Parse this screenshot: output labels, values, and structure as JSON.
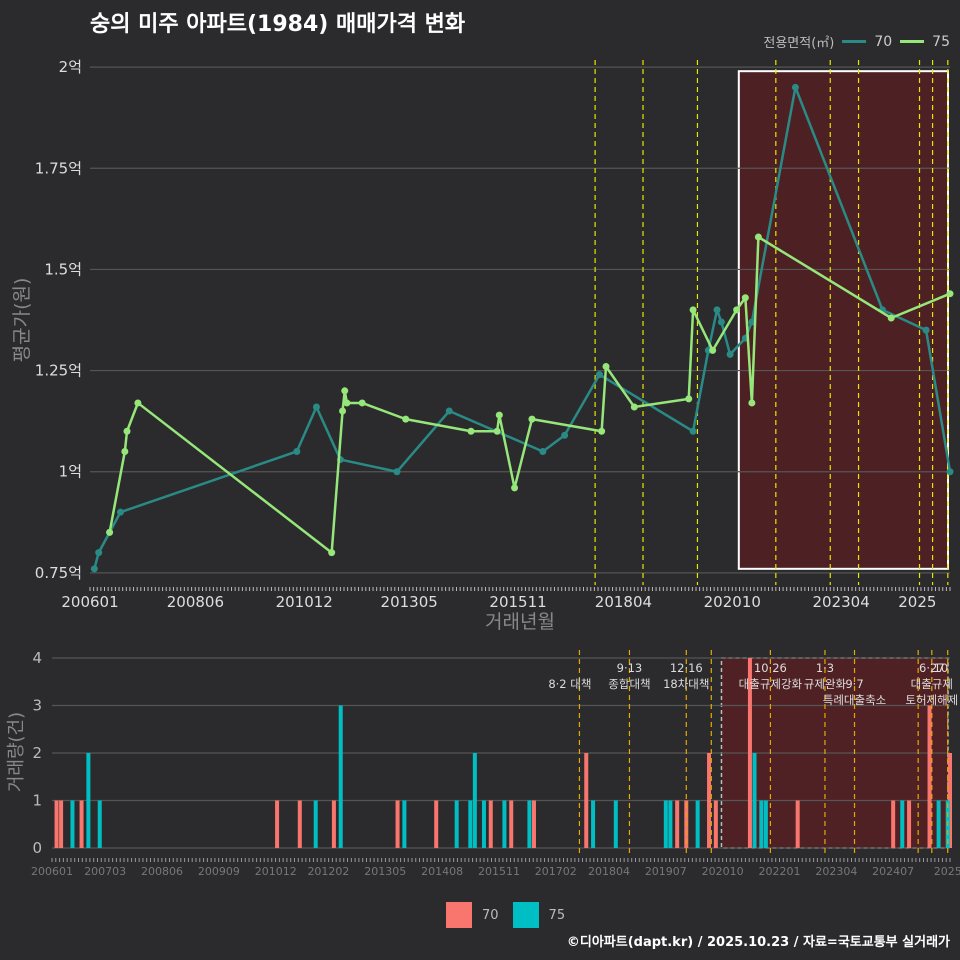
{
  "title": "숭의 미주 아파트(1984) 매매가격 변화",
  "footer": "©디아파트(dapt.kr) / 2025.10.23 / 자료=국토교통부 실거래가",
  "colors": {
    "bg": "#2b2b2d",
    "line70": "#2a8a85",
    "line75": "#96e67a",
    "bar70": "#f8766d",
    "bar75": "#00bfc4",
    "policy": "#e6e600",
    "policy_bottom": "#e6a800",
    "highlight_fill": "#5a1f22",
    "grid": "#555555"
  },
  "legend_top": {
    "title": "전용면적(㎡)",
    "items": [
      "70",
      "75"
    ]
  },
  "legend_bottom": {
    "items": [
      "70",
      "75"
    ]
  },
  "chart_data": [
    {
      "type": "line",
      "title": "숭의 미주 아파트(1984) 매매가격 변화",
      "xlabel": "거래년월",
      "ylabel": "평균가(원)",
      "x_ticks": [
        "200601",
        "200806",
        "201012",
        "201305",
        "201511",
        "201804",
        "202010",
        "202304",
        "2025"
      ],
      "x_tick_values": [
        2006.0,
        2008.42,
        2010.92,
        2013.33,
        2015.83,
        2018.25,
        2020.75,
        2023.25,
        2025.0
      ],
      "xlim": [
        2006.0,
        2025.75
      ],
      "ylim": [
        0.72,
        2.03
      ],
      "y_ticks": [
        0.75,
        1.0,
        1.25,
        1.5,
        1.75,
        2.0
      ],
      "y_tick_labels": [
        "0.75억",
        "1억",
        "1.25억",
        "1.5억",
        "1.75억",
        "2억"
      ],
      "policy_lines_x": [
        2017.6,
        2018.7,
        2019.95,
        2021.75,
        2023.0,
        2023.65,
        2025.05,
        2025.35,
        2025.7
      ],
      "highlight_range": [
        2020.9,
        2025.75
      ],
      "highlight_y_range": [
        0.76,
        1.99
      ],
      "series": [
        {
          "name": "70",
          "x": [
            2006.1,
            2006.2,
            2006.45,
            2006.7,
            2010.75,
            2011.2,
            2011.75,
            2013.05,
            2014.25,
            2016.4,
            2016.9,
            2017.7,
            2019.85,
            2020.2,
            2020.4,
            2020.5,
            2020.7,
            2021.05,
            2021.2,
            2022.2,
            2024.2,
            2025.2,
            2025.75
          ],
          "y": [
            0.76,
            0.8,
            0.85,
            0.9,
            1.05,
            1.16,
            1.03,
            1.0,
            1.15,
            1.05,
            1.09,
            1.24,
            1.1,
            1.3,
            1.4,
            1.37,
            1.29,
            1.33,
            1.37,
            1.95,
            1.4,
            1.35,
            1.0
          ]
        },
        {
          "name": "75",
          "x": [
            2006.45,
            2006.8,
            2006.85,
            2007.1,
            2011.55,
            2011.8,
            2011.85,
            2011.9,
            2012.25,
            2013.25,
            2014.75,
            2015.35,
            2015.4,
            2015.75,
            2016.15,
            2017.75,
            2017.85,
            2018.5,
            2019.75,
            2019.85,
            2020.3,
            2020.85,
            2021.05,
            2021.2,
            2021.35,
            2024.4,
            2025.75
          ],
          "y": [
            0.85,
            1.05,
            1.1,
            1.17,
            0.8,
            1.15,
            1.2,
            1.17,
            1.17,
            1.13,
            1.1,
            1.1,
            1.14,
            0.96,
            1.13,
            1.1,
            1.26,
            1.16,
            1.18,
            1.4,
            1.3,
            1.4,
            1.43,
            1.17,
            1.58,
            1.38,
            1.44
          ]
        }
      ]
    },
    {
      "type": "bar",
      "xlabel": "",
      "ylabel": "거래량(건)",
      "x_ticks": [
        "200601",
        "200703",
        "200806",
        "200909",
        "201012",
        "201202",
        "201305",
        "201408",
        "201511",
        "201702",
        "201804",
        "201907",
        "202010",
        "202201",
        "202304",
        "202407",
        "2025"
      ],
      "x_tick_values": [
        2006.0,
        2007.17,
        2008.42,
        2009.67,
        2010.92,
        2012.08,
        2013.33,
        2014.58,
        2015.83,
        2017.08,
        2018.25,
        2019.5,
        2020.75,
        2022.0,
        2023.25,
        2024.5,
        2025.7
      ],
      "xlim": [
        2006.0,
        2025.75
      ],
      "ylim": [
        0,
        4
      ],
      "y_ticks": [
        0,
        1,
        2,
        3,
        4
      ],
      "policy_lines_x": [
        2017.6,
        2018.7,
        2019.95,
        2020.5,
        2021.8,
        2023.0,
        2023.65,
        2025.05,
        2025.35,
        2025.7
      ],
      "highlight_range": [
        2020.9,
        2025.75
      ],
      "annotations": [
        {
          "x": 2017.6,
          "row": 1,
          "text": "8·2 대책",
          "anchor": "end"
        },
        {
          "x": 2018.7,
          "row": 0,
          "text": "9·13",
          "anchor": "middle"
        },
        {
          "x": 2018.7,
          "row": 1,
          "text": "종합대책",
          "anchor": "middle"
        },
        {
          "x": 2019.95,
          "row": 0,
          "text": "12·16",
          "anchor": "middle"
        },
        {
          "x": 2019.95,
          "row": 1,
          "text": "18차대책",
          "anchor": "middle"
        },
        {
          "x": 2021.8,
          "row": 0,
          "text": "10·26",
          "anchor": "middle"
        },
        {
          "x": 2021.8,
          "row": 1,
          "text": "대출규제강화",
          "anchor": "middle"
        },
        {
          "x": 2023.0,
          "row": 0,
          "text": "1·3",
          "anchor": "middle"
        },
        {
          "x": 2023.0,
          "row": 1,
          "text": "규제완화",
          "anchor": "middle"
        },
        {
          "x": 2023.65,
          "row": 1,
          "text": "9·7",
          "anchor": "middle"
        },
        {
          "x": 2023.65,
          "row": 2,
          "text": "특례대출축소",
          "anchor": "middle"
        },
        {
          "x": 2025.35,
          "row": 0,
          "text": "6·27",
          "anchor": "middle"
        },
        {
          "x": 2025.35,
          "row": 1,
          "text": "대출규제",
          "anchor": "middle"
        },
        {
          "x": 2025.55,
          "row": 0,
          "text": "10",
          "anchor": "middle"
        },
        {
          "x": 2025.35,
          "row": 2,
          "text": "토허제해제",
          "anchor": "middle"
        }
      ],
      "series": [
        {
          "name": "70",
          "x": [
            2006.1,
            2006.2,
            2006.65,
            2010.95,
            2011.45,
            2012.2,
            2013.6,
            2014.45,
            2015.65,
            2016.1,
            2016.6,
            2017.75,
            2019.75,
            2019.95,
            2020.45,
            2020.6,
            2021.35,
            2022.4,
            2024.5,
            2024.85,
            2025.3,
            2025.75
          ],
          "y": [
            1,
            1,
            1,
            1,
            1,
            1,
            1,
            1,
            1,
            1,
            1,
            2,
            1,
            1,
            2,
            1,
            4,
            1,
            1,
            1,
            3,
            2
          ]
        },
        {
          "name": "75",
          "x": [
            2006.45,
            2006.8,
            2007.05,
            2011.8,
            2012.35,
            2013.75,
            2014.9,
            2015.2,
            2015.3,
            2015.5,
            2015.95,
            2016.5,
            2017.9,
            2018.4,
            2019.5,
            2019.6,
            2020.2,
            2021.45,
            2021.6,
            2021.7,
            2024.7,
            2025.5,
            2025.7
          ],
          "y": [
            1,
            2,
            1,
            1,
            3,
            1,
            1,
            1,
            2,
            1,
            1,
            1,
            1,
            1,
            1,
            1,
            1,
            2,
            1,
            1,
            1,
            1,
            1
          ]
        }
      ]
    }
  ]
}
